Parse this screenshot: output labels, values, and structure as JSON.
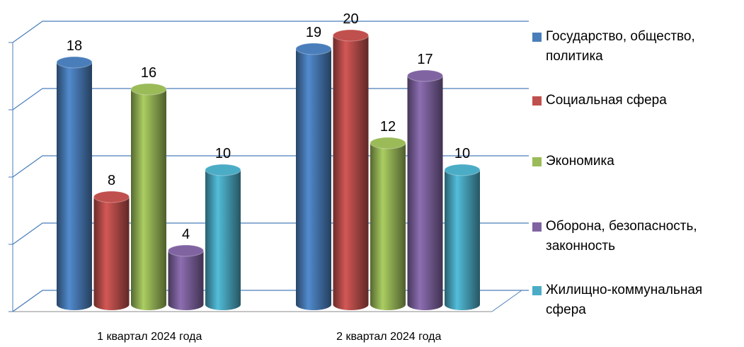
{
  "chart_data": {
    "type": "bar",
    "style": "3d-cylinder",
    "categories": [
      "1 квартал 2024 года",
      "2 квартал 2024 года"
    ],
    "series": [
      {
        "name": "Государство, общество, политика",
        "color": "#4a7ebb",
        "values": [
          18,
          19
        ]
      },
      {
        "name": "Социальная сфера",
        "color": "#c0504d",
        "values": [
          8,
          20
        ]
      },
      {
        "name": "Экономика",
        "color": "#9bbb59",
        "values": [
          16,
          12
        ]
      },
      {
        "name": "Оборона, безопасность, законность",
        "color": "#8064a2",
        "values": [
          4,
          17
        ]
      },
      {
        "name": "Жилищно-коммунальная сфера",
        "color": "#4bacc6",
        "values": [
          10,
          10
        ]
      }
    ],
    "ylim": [
      0,
      20
    ],
    "yticks": [
      0,
      5,
      10,
      15,
      20
    ],
    "grid": true,
    "legend": "right"
  }
}
